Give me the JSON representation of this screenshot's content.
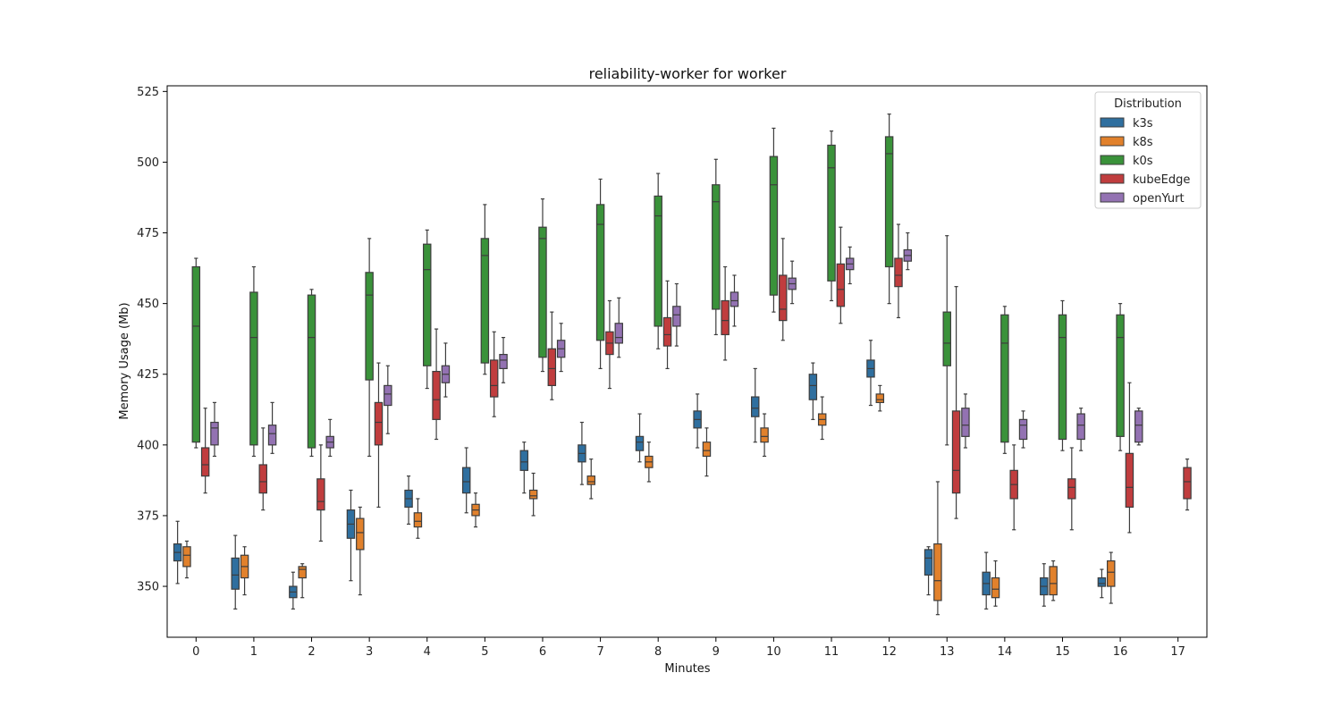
{
  "chart_data": {
    "type": "box",
    "title": "reliability-worker for worker",
    "xlabel": "Minutes",
    "ylabel": "Memory Usage (Mb)",
    "ylim": [
      332,
      527
    ],
    "yticks": [
      350,
      375,
      400,
      425,
      450,
      475,
      500,
      525
    ],
    "categories": [
      "0",
      "1",
      "2",
      "3",
      "4",
      "5",
      "6",
      "7",
      "8",
      "9",
      "10",
      "11",
      "12",
      "13",
      "14",
      "15",
      "16",
      "17"
    ],
    "legend": {
      "title": "Distribution",
      "position": "top-right"
    },
    "series": [
      {
        "name": "k3s",
        "color": "#2f6f9f",
        "boxes": [
          [
            351,
            359,
            362,
            365,
            373
          ],
          [
            342,
            349,
            354,
            360,
            368
          ],
          [
            342,
            346,
            348,
            350,
            355
          ],
          [
            352,
            367,
            372,
            377,
            384
          ],
          [
            372,
            378,
            381,
            384,
            389
          ],
          [
            376,
            383,
            387,
            392,
            399
          ],
          [
            383,
            391,
            394,
            398,
            401
          ],
          [
            386,
            394,
            397,
            400,
            408
          ],
          [
            394,
            398,
            401,
            403,
            411
          ],
          [
            399,
            406,
            409,
            412,
            418
          ],
          [
            401,
            410,
            413,
            417,
            427
          ],
          [
            409,
            416,
            421,
            425,
            429
          ],
          [
            414,
            424,
            427,
            430,
            437
          ],
          [
            347,
            354,
            360,
            363,
            364
          ],
          [
            342,
            347,
            351,
            355,
            362
          ],
          [
            343,
            347,
            350,
            353,
            358
          ],
          [
            346,
            350,
            351,
            353,
            356
          ],
          null
        ]
      },
      {
        "name": "k8s",
        "color": "#e1812c",
        "boxes": [
          [
            353,
            357,
            361,
            364,
            366
          ],
          [
            347,
            353,
            357,
            361,
            364
          ],
          [
            346,
            353,
            356,
            357,
            358
          ],
          [
            347,
            363,
            369,
            374,
            378
          ],
          [
            367,
            371,
            373,
            376,
            381
          ],
          [
            371,
            375,
            377,
            379,
            383
          ],
          [
            375,
            381,
            382,
            384,
            390
          ],
          [
            381,
            386,
            387,
            389,
            395
          ],
          [
            387,
            392,
            394,
            396,
            401
          ],
          [
            389,
            396,
            398,
            401,
            406
          ],
          [
            396,
            401,
            403,
            406,
            411
          ],
          [
            402,
            407,
            409,
            411,
            417
          ],
          [
            412,
            415,
            416,
            418,
            421
          ],
          [
            340,
            345,
            352,
            365,
            387
          ],
          [
            343,
            346,
            349,
            353,
            359
          ],
          [
            345,
            347,
            351,
            357,
            359
          ],
          [
            344,
            350,
            355,
            359,
            362
          ],
          null
        ]
      },
      {
        "name": "k0s",
        "color": "#3a923a",
        "boxes": [
          [
            399,
            401,
            442,
            463,
            466
          ],
          [
            396,
            400,
            438,
            454,
            463
          ],
          [
            396,
            399,
            438,
            453,
            455
          ],
          [
            396,
            423,
            453,
            461,
            473
          ],
          [
            420,
            428,
            462,
            471,
            476
          ],
          [
            425,
            429,
            467,
            473,
            485
          ],
          [
            426,
            431,
            473,
            477,
            487
          ],
          [
            427,
            437,
            478,
            485,
            494
          ],
          [
            434,
            442,
            481,
            488,
            496
          ],
          [
            439,
            448,
            486,
            492,
            501
          ],
          [
            447,
            453,
            492,
            502,
            512
          ],
          [
            451,
            458,
            498,
            506,
            511
          ],
          [
            450,
            463,
            503,
            509,
            517
          ],
          [
            400,
            428,
            436,
            447,
            474
          ],
          [
            397,
            401,
            436,
            446,
            449
          ],
          [
            398,
            402,
            438,
            446,
            451
          ],
          [
            398,
            403,
            438,
            446,
            450
          ],
          null
        ]
      },
      {
        "name": "kubeEdge",
        "color": "#c03d3e",
        "boxes": [
          [
            383,
            389,
            393,
            399,
            413
          ],
          [
            377,
            383,
            387,
            393,
            406
          ],
          [
            366,
            377,
            380,
            388,
            400
          ],
          [
            378,
            400,
            408,
            415,
            429
          ],
          [
            402,
            409,
            416,
            426,
            441
          ],
          [
            410,
            417,
            421,
            430,
            440
          ],
          [
            416,
            421,
            427,
            434,
            447
          ],
          [
            420,
            432,
            436,
            440,
            451
          ],
          [
            427,
            435,
            439,
            445,
            458
          ],
          [
            430,
            439,
            444,
            451,
            463
          ],
          [
            437,
            444,
            448,
            460,
            473
          ],
          [
            443,
            449,
            455,
            464,
            477
          ],
          [
            445,
            456,
            460,
            466,
            478
          ],
          [
            374,
            383,
            391,
            412,
            456
          ],
          [
            370,
            381,
            386,
            391,
            400
          ],
          [
            370,
            381,
            385,
            388,
            399
          ],
          [
            369,
            378,
            385,
            397,
            422
          ],
          [
            377,
            381,
            387,
            392,
            395
          ]
        ]
      },
      {
        "name": "openYurt",
        "color": "#9372b2",
        "boxes": [
          [
            396,
            400,
            406,
            408,
            415
          ],
          [
            397,
            400,
            404,
            407,
            415
          ],
          [
            396,
            399,
            401,
            403,
            409
          ],
          [
            404,
            414,
            418,
            421,
            428
          ],
          [
            417,
            422,
            425,
            428,
            436
          ],
          [
            422,
            427,
            430,
            432,
            438
          ],
          [
            426,
            431,
            434,
            437,
            443
          ],
          [
            431,
            436,
            438,
            443,
            452
          ],
          [
            435,
            442,
            446,
            449,
            457
          ],
          [
            442,
            449,
            451,
            454,
            460
          ],
          [
            450,
            455,
            457,
            459,
            465
          ],
          [
            457,
            462,
            464,
            466,
            470
          ],
          [
            462,
            465,
            467,
            469,
            475
          ],
          [
            399,
            403,
            407,
            413,
            418
          ],
          [
            399,
            402,
            407,
            409,
            412
          ],
          [
            398,
            402,
            407,
            411,
            413
          ],
          [
            400,
            401,
            407,
            412,
            413
          ],
          null
        ]
      }
    ]
  }
}
